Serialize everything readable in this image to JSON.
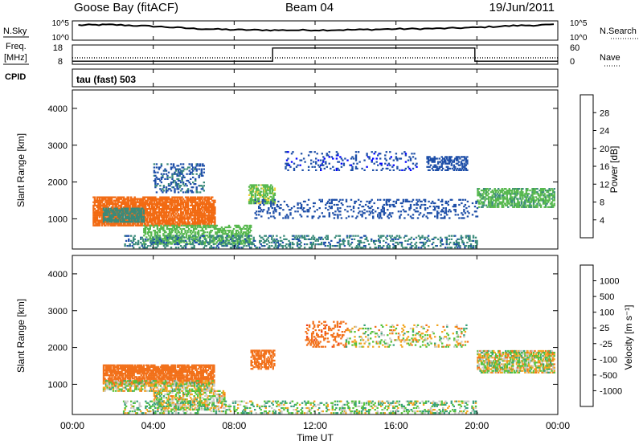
{
  "header": {
    "station": "Goose Bay (fitACF)",
    "beam": "Beam 04",
    "date": "19/Jun/2011"
  },
  "noise_panel": {
    "left_label": "N.Sky",
    "right_label": "N.Search",
    "y_ticks_left": [
      "10^5",
      "10^0"
    ],
    "y_ticks_right": [
      "10^5",
      "10^0"
    ]
  },
  "freq_panel": {
    "left_label_1": "Freq.",
    "left_label_2": "[MHz]",
    "cpid_label": "CPID",
    "y_ticks_left": [
      "18",
      "8"
    ],
    "right_label": "Nave",
    "y_ticks_right": [
      "60",
      "0"
    ]
  },
  "mode_text": "tau (fast) 503",
  "x_ticks": [
    "00:00",
    "04:00",
    "08:00",
    "12:00",
    "16:00",
    "20:00",
    "00:00"
  ],
  "x_label": "Time UT",
  "y_label": "Slant Range [km]",
  "y_ticks": [
    "1000",
    "2000",
    "3000",
    "4000"
  ],
  "power_colorbar": {
    "label": "Power [dB]",
    "ticks": [
      "4",
      "8",
      "12",
      "16",
      "20",
      "24",
      "28"
    ],
    "colors": [
      "#0000ff",
      "#1e4fa8",
      "#3a8a7a",
      "#57b84e",
      "#f0d23a",
      "#f39c22",
      "#f26a12",
      "#e51c0e"
    ]
  },
  "velocity_colorbar": {
    "label": "Velocity [m s⁻¹]",
    "ticks": [
      "1000",
      "500",
      "100",
      "25",
      "-25",
      "-100",
      "-500",
      "-1000"
    ],
    "colors": [
      "#1a3ca8",
      "#2f6fbf",
      "#38a07a",
      "#55c23a",
      "#c9c9c4",
      "#f2a51f",
      "#f2711a",
      "#ee3a16",
      "#e2100e"
    ]
  },
  "chart_data": [
    {
      "type": "line",
      "title": "N.Sky / N.Search",
      "x_range_hours": [
        0,
        24
      ],
      "ylim_log10": [
        0,
        5
      ],
      "series": [
        {
          "name": "N.Sky",
          "x": [
            0.3,
            2,
            4,
            6,
            8,
            10,
            12,
            14,
            16,
            18,
            20,
            22,
            24
          ],
          "values_log10": [
            3.9,
            4.0,
            3.6,
            3.0,
            2.7,
            2.6,
            2.6,
            2.7,
            2.9,
            3.0,
            3.3,
            3.8,
            4.0
          ]
        }
      ]
    },
    {
      "type": "line",
      "title": "Freq. [MHz] / Nave",
      "x_range_hours": [
        0,
        24
      ],
      "ylim_left": [
        8,
        18
      ],
      "ylim_right": [
        0,
        60
      ],
      "series": [
        {
          "name": "Freq. [MHz]",
          "x": [
            0,
            9.9,
            9.9,
            19.9,
            19.9,
            24
          ],
          "values": [
            9.6,
            9.6,
            16.4,
            16.4,
            9.6,
            9.6
          ]
        },
        {
          "name": "Nave",
          "x": [
            0,
            24
          ],
          "values": [
            20,
            20
          ]
        }
      ]
    },
    {
      "type": "heatmap",
      "title": "Power [dB]",
      "x_range_hours": [
        0,
        24
      ],
      "ylim_km": [
        180,
        4500
      ],
      "clim": [
        0,
        32
      ],
      "regions": [
        {
          "t": [
            1.0,
            7.0
          ],
          "r": [
            800,
            1600
          ],
          "level": 26,
          "density": 0.8
        },
        {
          "t": [
            1.5,
            3.5
          ],
          "r": [
            900,
            1300
          ],
          "level": 10,
          "density": 0.7
        },
        {
          "t": [
            3.5,
            8.8
          ],
          "r": [
            300,
            800
          ],
          "level": 14,
          "density": 0.5
        },
        {
          "t": [
            4.0,
            6.5
          ],
          "r": [
            1700,
            2500
          ],
          "level": 7,
          "density": 0.3
        },
        {
          "t": [
            8.7,
            10.0
          ],
          "r": [
            1400,
            1900
          ],
          "level": 15,
          "density": 0.6
        },
        {
          "t": [
            9.0,
            20.0
          ],
          "r": [
            1000,
            1500
          ],
          "level": 6,
          "density": 0.2
        },
        {
          "t": [
            10.5,
            17.0
          ],
          "r": [
            2300,
            2800
          ],
          "level": 5,
          "density": 0.15
        },
        {
          "t": [
            17.5,
            19.5
          ],
          "r": [
            2300,
            2700
          ],
          "level": 6,
          "density": 0.5
        },
        {
          "t": [
            20.0,
            23.8
          ],
          "r": [
            1300,
            1800
          ],
          "level": 13,
          "density": 0.6
        },
        {
          "t": [
            2.5,
            20.0
          ],
          "r": [
            200,
            550
          ],
          "level": 9,
          "density": 0.3
        }
      ]
    },
    {
      "type": "heatmap",
      "title": "Velocity [m s⁻¹]",
      "x_range_hours": [
        0,
        24
      ],
      "ylim_km": [
        180,
        4500
      ],
      "clim": [
        -1000,
        1000
      ],
      "regions": [
        {
          "t": [
            1.5,
            7.0
          ],
          "r": [
            1000,
            1500
          ],
          "level": -300,
          "density": 0.8
        },
        {
          "t": [
            1.5,
            7.0
          ],
          "r": [
            800,
            1100
          ],
          "level": 0,
          "density": 0.6
        },
        {
          "t": [
            4.0,
            7.5
          ],
          "r": [
            300,
            800
          ],
          "level": 0,
          "density": 0.5
        },
        {
          "t": [
            8.8,
            10.0
          ],
          "r": [
            1400,
            1900
          ],
          "level": -300,
          "density": 0.6
        },
        {
          "t": [
            11.5,
            13.5
          ],
          "r": [
            2000,
            2700
          ],
          "level": -400,
          "density": 0.25
        },
        {
          "t": [
            13.5,
            19.5
          ],
          "r": [
            2000,
            2600
          ],
          "level": 0,
          "density": 0.2
        },
        {
          "t": [
            20.0,
            23.8
          ],
          "r": [
            1300,
            1900
          ],
          "level": 0,
          "density": 0.7
        },
        {
          "t": [
            2.5,
            20.0
          ],
          "r": [
            200,
            550
          ],
          "level": 60,
          "density": 0.3
        }
      ]
    }
  ]
}
